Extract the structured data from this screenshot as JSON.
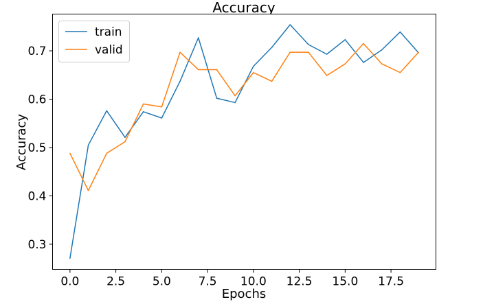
{
  "chart_data": {
    "type": "line",
    "title": "Accuracy",
    "xlabel": "Epochs",
    "ylabel": "Accuracy",
    "x": [
      0,
      1,
      2,
      3,
      4,
      5,
      6,
      7,
      8,
      9,
      10,
      11,
      12,
      13,
      14,
      15,
      16,
      17,
      18,
      19
    ],
    "xlim": [
      -0.95,
      19.95
    ],
    "ylim": [
      0.248,
      0.776
    ],
    "xticks": [
      0.0,
      2.5,
      5.0,
      7.5,
      10.0,
      12.5,
      15.0,
      17.5
    ],
    "xtick_labels": [
      "0.0",
      "2.5",
      "5.0",
      "7.5",
      "10.0",
      "12.5",
      "15.0",
      "17.5"
    ],
    "yticks": [
      0.3,
      0.4,
      0.5,
      0.6,
      0.7
    ],
    "ytick_labels": [
      "0.3",
      "0.4",
      "0.5",
      "0.6",
      "0.7"
    ],
    "grid": false,
    "legend_position": "top-left",
    "series": [
      {
        "name": "train",
        "color": "#1f77b4",
        "values": [
          0.271,
          0.505,
          0.576,
          0.521,
          0.574,
          0.561,
          0.637,
          0.727,
          0.602,
          0.593,
          0.668,
          0.707,
          0.754,
          0.713,
          0.693,
          0.723,
          0.676,
          0.702,
          0.739,
          0.696
        ]
      },
      {
        "name": "valid",
        "color": "#ff7f0e",
        "values": [
          0.488,
          0.411,
          0.488,
          0.512,
          0.59,
          0.584,
          0.697,
          0.661,
          0.661,
          0.607,
          0.655,
          0.637,
          0.697,
          0.697,
          0.649,
          0.673,
          0.715,
          0.673,
          0.655,
          0.697
        ]
      }
    ]
  }
}
